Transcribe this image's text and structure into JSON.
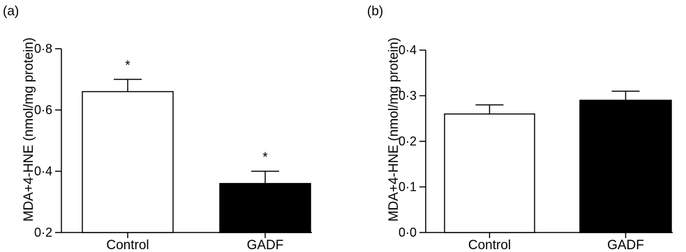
{
  "chart_data": [
    {
      "panel_label": "(a)",
      "type": "bar",
      "categories": [
        "Control",
        "GADF"
      ],
      "values": [
        0.66,
        0.36
      ],
      "errors": [
        0.04,
        0.04
      ],
      "annotations": [
        "*",
        "*"
      ],
      "bar_colors": [
        "#ffffff",
        "#000000"
      ],
      "ylabel": "MDA+4-HNE (nmol/mg protein)",
      "ylim": [
        0.2,
        0.8
      ],
      "yticks": [
        0.2,
        0.4,
        0.6,
        0.8
      ],
      "ytick_labels": [
        "0·2",
        "0·4",
        "0·6",
        "0·8"
      ],
      "grid": false
    },
    {
      "panel_label": "(b)",
      "type": "bar",
      "categories": [
        "Control",
        "GADF"
      ],
      "values": [
        0.26,
        0.29
      ],
      "errors": [
        0.02,
        0.02
      ],
      "annotations": [
        "",
        ""
      ],
      "bar_colors": [
        "#ffffff",
        "#000000"
      ],
      "ylabel": "MDA+4-HNE (nmol/mg protein)",
      "ylim": [
        0.0,
        0.4
      ],
      "yticks": [
        0.0,
        0.1,
        0.2,
        0.3,
        0.4
      ],
      "ytick_labels": [
        "0·0",
        "0·1",
        "0·2",
        "0·3",
        "0·4"
      ],
      "grid": false
    }
  ]
}
